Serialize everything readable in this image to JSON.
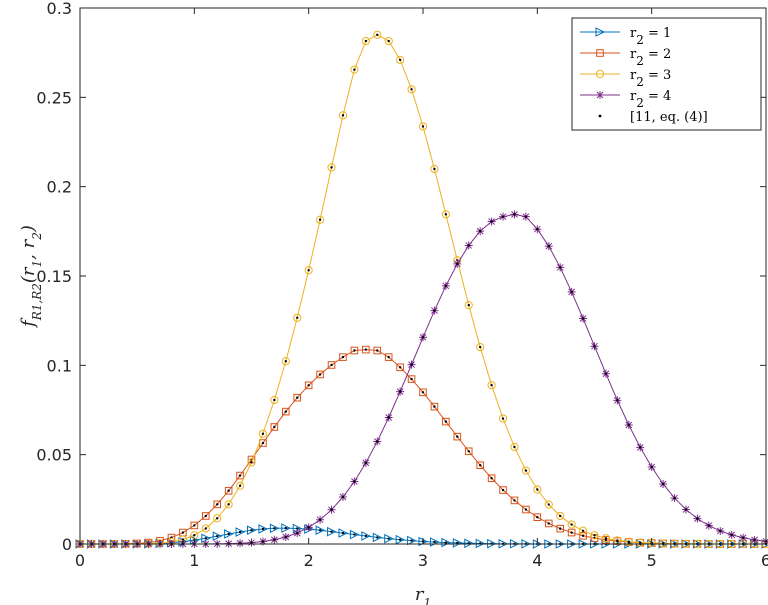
{
  "chart_data": {
    "type": "line",
    "title": "",
    "xlabel": "r_1",
    "ylabel": "f_{R_1,R_2}(r_1, r_2)",
    "xlim": [
      0,
      6
    ],
    "ylim": [
      0,
      0.3
    ],
    "xticks": [
      "0",
      "1",
      "2",
      "3",
      "4",
      "5",
      "6"
    ],
    "yticks": [
      "0",
      "0.05",
      "0.1",
      "0.15",
      "0.2",
      "0.25",
      "0.3"
    ],
    "grid": false,
    "legend_position": "top-right",
    "legend": [
      "r_2 = 1",
      "r_2 = 2",
      "r_2 = 3",
      "r_2 = 4",
      "[11, eq. (4)]"
    ],
    "x": [
      0,
      0.1,
      0.2,
      0.3,
      0.4,
      0.5,
      0.6,
      0.7,
      0.8,
      0.9,
      1.0,
      1.1,
      1.2,
      1.3,
      1.4,
      1.5,
      1.6,
      1.7,
      1.8,
      1.9,
      2.0,
      2.1,
      2.2,
      2.3,
      2.4,
      2.5,
      2.6,
      2.7,
      2.8,
      2.9,
      3.0,
      3.1,
      3.2,
      3.3,
      3.4,
      3.5,
      3.6,
      3.7,
      3.8,
      3.9,
      4.0,
      4.1,
      4.2,
      4.3,
      4.4,
      4.5,
      4.6,
      4.7,
      4.8,
      4.9,
      5.0,
      5.1,
      5.2,
      5.3,
      5.4,
      5.5,
      5.6,
      5.7,
      5.8,
      5.9,
      6.0
    ],
    "series": [
      {
        "name": "r_2 = 1",
        "color": "#0072BD",
        "marker": "triangle-right",
        "values": [
          0,
          0,
          0,
          0,
          0,
          0,
          0.0001,
          0.0003,
          0.0007,
          0.0013,
          0.0022,
          0.0032,
          0.0044,
          0.0056,
          0.0067,
          0.0077,
          0.0084,
          0.0088,
          0.0089,
          0.0087,
          0.0083,
          0.0077,
          0.0069,
          0.0061,
          0.0053,
          0.0045,
          0.0037,
          0.003,
          0.0024,
          0.0019,
          0.0014,
          0.0011,
          0.0008,
          0.0006,
          0.0004,
          0.0003,
          0.0002,
          0.0001,
          0.0001,
          0.0001,
          0,
          0,
          0,
          0,
          0,
          0,
          0,
          0,
          0,
          0,
          0,
          0,
          0,
          0,
          0,
          0,
          0,
          0,
          0,
          0,
          0
        ]
      },
      {
        "name": "r_2 = 2",
        "color": "#D95319",
        "marker": "square",
        "values": [
          0,
          0,
          0,
          0,
          0.0001,
          0.0003,
          0.0008,
          0.0018,
          0.0036,
          0.0064,
          0.0104,
          0.0157,
          0.0222,
          0.0298,
          0.0383,
          0.0473,
          0.0565,
          0.0655,
          0.0741,
          0.0819,
          0.0888,
          0.0949,
          0.1002,
          0.1046,
          0.1083,
          0.1088,
          0.1083,
          0.1046,
          0.0989,
          0.0923,
          0.0849,
          0.0769,
          0.0685,
          0.0601,
          0.0519,
          0.0441,
          0.0368,
          0.0302,
          0.0244,
          0.0193,
          0.015,
          0.0115,
          0.0086,
          0.0064,
          0.0046,
          0.0033,
          0.0023,
          0.0016,
          0.0011,
          0.0007,
          0.0005,
          0.0003,
          0.0002,
          0.0001,
          0.0001,
          0,
          0,
          0,
          0,
          0,
          0
        ]
      },
      {
        "name": "r_2 = 3",
        "color": "#EDB120",
        "marker": "circle",
        "values": [
          0,
          0,
          0,
          0,
          0,
          0,
          0.0001,
          0.0004,
          0.0011,
          0.0025,
          0.0049,
          0.0087,
          0.0144,
          0.0222,
          0.0326,
          0.0457,
          0.0617,
          0.0806,
          0.1023,
          0.1266,
          0.1532,
          0.1815,
          0.2108,
          0.2399,
          0.2655,
          0.2815,
          0.285,
          0.2815,
          0.271,
          0.2545,
          0.2337,
          0.2099,
          0.1845,
          0.1588,
          0.1337,
          0.1102,
          0.0889,
          0.0702,
          0.0543,
          0.0411,
          0.0305,
          0.0221,
          0.0157,
          0.0109,
          0.0074,
          0.0049,
          0.0032,
          0.002,
          0.0013,
          0.0008,
          0.0005,
          0.0003,
          0.0002,
          0.0001,
          0.0001,
          0,
          0,
          0,
          0,
          0,
          0
        ]
      },
      {
        "name": "r_2 = 4",
        "color": "#7E2F8E",
        "marker": "asterisk",
        "values": [
          0,
          0,
          0,
          0,
          0,
          0,
          0,
          0,
          0,
          0,
          0,
          0,
          0.0001,
          0.0002,
          0.0004,
          0.0008,
          0.0014,
          0.0024,
          0.0039,
          0.0061,
          0.0093,
          0.0136,
          0.0192,
          0.0263,
          0.035,
          0.0454,
          0.0574,
          0.0708,
          0.0853,
          0.1004,
          0.1157,
          0.1306,
          0.1445,
          0.1568,
          0.1671,
          0.1751,
          0.1805,
          0.1832,
          0.1845,
          0.1832,
          0.1762,
          0.1667,
          0.1548,
          0.1411,
          0.1262,
          0.1107,
          0.0953,
          0.0804,
          0.0666,
          0.0541,
          0.0431,
          0.0336,
          0.0257,
          0.0193,
          0.0142,
          0.0103,
          0.0073,
          0.0051,
          0.0035,
          0.0023,
          0.0015
        ]
      }
    ],
    "reference_series": {
      "name": "[11, eq. (4)]",
      "color": "#000000",
      "marker": "dot"
    }
  }
}
